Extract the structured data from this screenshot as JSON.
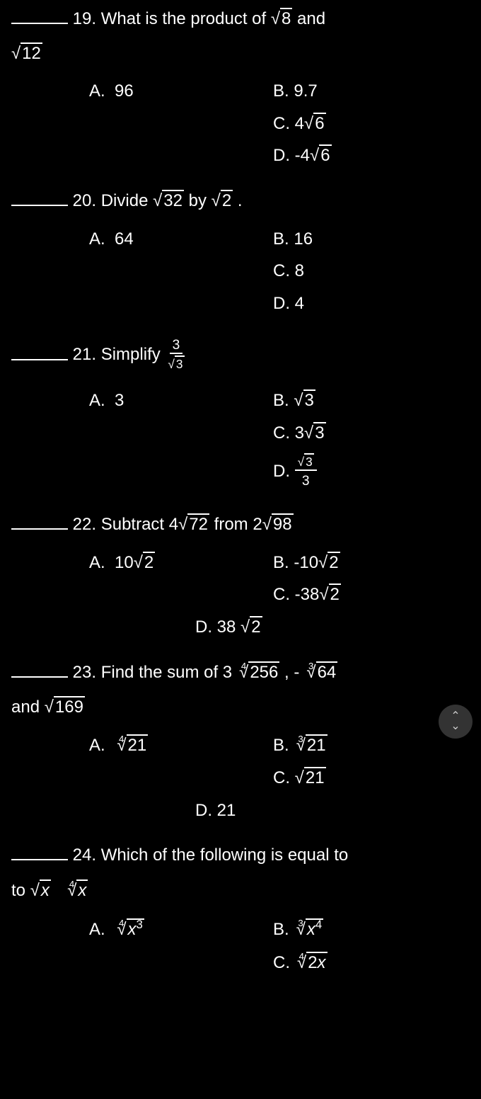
{
  "questions": [
    {
      "num": "19.",
      "text_before": "What is the product of ",
      "rad1": "8",
      "text_mid": " and ",
      "rad2": "12",
      "optA_label": "A.",
      "optA": "96",
      "optB_label": "B.",
      "optB": "9.7",
      "optC_label": "C.",
      "optC_coef": "4",
      "optC_rad": "6",
      "optD_label": "D.",
      "optD_coef": "-4",
      "optD_rad": "6"
    },
    {
      "num": "20.",
      "text": "Divide ",
      "rad1": "32",
      "text_mid": " by ",
      "rad2": "2",
      "text_end": " .",
      "optA_label": "A.",
      "optA": "64",
      "optB_label": "B.",
      "optB": "16",
      "optC_label": "C.",
      "optC": "8",
      "optD_label": "D.",
      "optD": "4"
    },
    {
      "num": "21.",
      "text": "Simplify ",
      "frac_num": "3",
      "frac_den_rad": "3",
      "optA_label": "A.",
      "optA": "3",
      "optB_label": "B.",
      "optB_rad": "3",
      "optC_label": "C.",
      "optC_coef": "3",
      "optC_rad": "3",
      "optD_label": "D.",
      "optD_num_rad": "3",
      "optD_den": "3"
    },
    {
      "num": "22.",
      "text": "Subtract ",
      "coef1": "4",
      "rad1": "72",
      "text_mid": " from ",
      "coef2": "2",
      "rad2": "98",
      "optA_label": "A.",
      "optA_coef": "10",
      "optA_rad": "2",
      "optB_label": "B.",
      "optB_coef": "-10",
      "optB_rad": "2",
      "optC_label": "C.",
      "optC_coef": "-38",
      "optC_rad": "2",
      "optD_label": "D.",
      "optD_coef": "38 ",
      "optD_rad": "2"
    },
    {
      "num": "23.",
      "text": "Find the sum of ",
      "coef1": "3 ",
      "idx1": "4",
      "rad1": "256",
      "text_mid": " , - ",
      "idx2": "3",
      "rad2": "64",
      "text_mid2": " and ",
      "rad3": "169",
      "optA_label": "A.",
      "optA_idx": "4",
      "optA_rad": "21",
      "optB_label": "B.",
      "optB_idx": "3",
      "optB_rad": "21",
      "optC_label": "C.",
      "optC_rad": "21",
      "optD_label": "D.",
      "optD": "21"
    },
    {
      "num": "24.",
      "text": "Which of the following is equal to ",
      "rad1_var": "x",
      "idx2": "4",
      "rad2_var": "x",
      "optA_label": "A.",
      "optA_idx": "4",
      "optA_var": "x",
      "optA_exp": "3",
      "optB_label": "B.",
      "optB_idx": "3",
      "optB_var": "x",
      "optB_exp": "4",
      "optC_label": "C.",
      "optC_idx": "4",
      "optC_coef": "2",
      "optC_var": "x"
    }
  ],
  "scroll_icon_up": "⌃",
  "scroll_icon_down": "⌄"
}
